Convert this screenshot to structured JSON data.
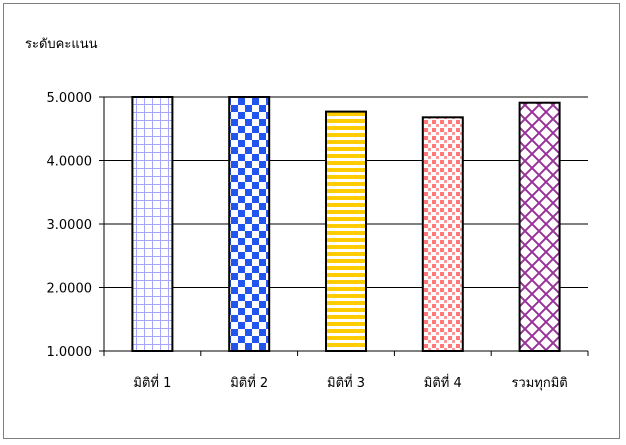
{
  "chart_data": {
    "type": "bar",
    "ylabel": "ระดับคะแนน",
    "categories": [
      "มิติที่ 1",
      "มิติที่ 2",
      "มิติที่ 3",
      "มิติที่ 4",
      "รวมทุกมิติ"
    ],
    "values": [
      5.0,
      5.0,
      4.77,
      4.68,
      4.91
    ],
    "ylim": [
      1,
      5
    ],
    "yticks": [
      "1.0000",
      "2.0000",
      "3.0000",
      "4.0000",
      "5.0000"
    ],
    "grid": true,
    "legend": "none",
    "series": [
      {
        "category": "มิติที่ 1",
        "pattern": "grid-lavender",
        "color": "#a6a6ff"
      },
      {
        "category": "มิติที่ 2",
        "pattern": "checker-blue",
        "color": "#3366ff"
      },
      {
        "category": "มิติที่ 3",
        "pattern": "stripes-gold",
        "color": "#ffcc00"
      },
      {
        "category": "มิติที่ 4",
        "pattern": "dots-pink",
        "color": "#ff8080"
      },
      {
        "category": "รวมทุกมิติ",
        "pattern": "diamond-purple",
        "color": "#993399"
      }
    ]
  }
}
